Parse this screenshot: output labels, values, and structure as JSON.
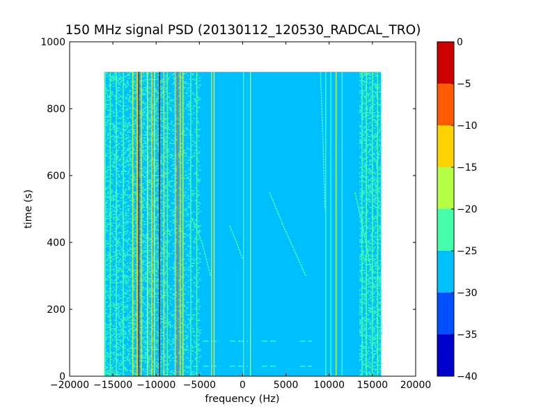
{
  "chart_data": {
    "type": "heatmap",
    "title": "150 MHz signal PSD (20130112_120530_RADCAL_TRO)",
    "xlabel": "frequency (Hz)",
    "ylabel": "time (s)",
    "xlim": [
      -20000,
      20000
    ],
    "ylim": [
      0,
      1000
    ],
    "xticks": [
      -20000,
      -15000,
      -10000,
      -5000,
      0,
      5000,
      10000,
      15000,
      20000
    ],
    "xtick_labels": [
      "−20000",
      "−15000",
      "−10000",
      "−5000",
      "0",
      "5000",
      "10000",
      "15000",
      "20000"
    ],
    "yticks": [
      0,
      200,
      400,
      600,
      800,
      1000
    ],
    "ytick_labels": [
      "0",
      "200",
      "400",
      "600",
      "800",
      "1000"
    ],
    "data_extent": {
      "freq": [
        -16000,
        16000
      ],
      "time": [
        0,
        910
      ]
    },
    "background_level": -27.5,
    "colorbar": {
      "levels": [
        -40,
        -35,
        -30,
        -25,
        -20,
        -15,
        -10,
        -5,
        0
      ],
      "tick_labels": [
        "−40",
        "−35",
        "−30",
        "−25",
        "−20",
        "−15",
        "−10",
        "−5",
        "0"
      ],
      "colors": [
        "#0000cd",
        "#0050ff",
        "#00bfff",
        "#45ffaa",
        "#b4ff46",
        "#ffd300",
        "#ff5a00",
        "#cd0000"
      ]
    },
    "steady_carriers": [
      {
        "freq": -15900,
        "level": -22.5,
        "t": [
          0,
          910
        ]
      },
      {
        "freq": -15300,
        "level": -22.5,
        "t": [
          0,
          910
        ]
      },
      {
        "freq": -14600,
        "level": -22.5,
        "t": [
          0,
          910
        ]
      },
      {
        "freq": -13800,
        "level": -22.5,
        "t": [
          0,
          910
        ]
      },
      {
        "freq": -12700,
        "level": -17.5,
        "t": [
          0,
          910
        ]
      },
      {
        "freq": -12200,
        "level": -12.5,
        "t": [
          0,
          910
        ]
      },
      {
        "freq": -12000,
        "level": -2.5,
        "t": [
          0,
          910
        ]
      },
      {
        "freq": -11700,
        "level": -12.5,
        "t": [
          0,
          910
        ]
      },
      {
        "freq": -11000,
        "level": -17.5,
        "t": [
          0,
          910
        ]
      },
      {
        "freq": -10500,
        "level": -12.5,
        "t": [
          0,
          910
        ]
      },
      {
        "freq": -10200,
        "level": -17.5,
        "t": [
          0,
          910
        ]
      },
      {
        "freq": -9600,
        "level": -2.5,
        "t": [
          0,
          910
        ]
      },
      {
        "freq": -9100,
        "level": -12.5,
        "t": [
          0,
          910
        ]
      },
      {
        "freq": -8700,
        "level": -22.5,
        "t": [
          0,
          910
        ]
      },
      {
        "freq": -7800,
        "level": -12.5,
        "t": [
          0,
          910
        ]
      },
      {
        "freq": -7500,
        "level": -7.5,
        "t": [
          0,
          910
        ]
      },
      {
        "freq": -7200,
        "level": -12.5,
        "t": [
          0,
          910
        ]
      },
      {
        "freq": -6900,
        "level": -17.5,
        "t": [
          0,
          910
        ]
      },
      {
        "freq": -6000,
        "level": -22.5,
        "t": [
          0,
          910
        ]
      },
      {
        "freq": -5300,
        "level": -22.5,
        "t": [
          0,
          910
        ]
      },
      {
        "freq": -3600,
        "level": -12.5,
        "t": [
          0,
          910
        ]
      },
      {
        "freq": -3300,
        "level": -17.5,
        "t": [
          0,
          910
        ]
      },
      {
        "freq": 100,
        "level": -22.5,
        "t": [
          0,
          910
        ]
      },
      {
        "freq": 900,
        "level": -17.5,
        "t": [
          0,
          910
        ]
      },
      {
        "freq": 9600,
        "level": -22.5,
        "t": [
          0,
          910
        ]
      },
      {
        "freq": 10200,
        "level": -22.5,
        "t": [
          0,
          910
        ]
      },
      {
        "freq": 10800,
        "level": -17.5,
        "t": [
          0,
          910
        ]
      },
      {
        "freq": 11500,
        "level": -22.5,
        "t": [
          0,
          910
        ]
      },
      {
        "freq": 13800,
        "level": -22.5,
        "t": [
          0,
          910
        ]
      },
      {
        "freq": 14300,
        "level": -22.5,
        "t": [
          0,
          910
        ]
      },
      {
        "freq": 15000,
        "level": -22.5,
        "t": [
          0,
          910
        ]
      },
      {
        "freq": 15600,
        "level": -22.5,
        "t": [
          0,
          910
        ]
      }
    ],
    "drifting_tracks": [
      {
        "level": -22.5,
        "points": [
          [
            3100,
            550
          ],
          [
            4700,
            450
          ],
          [
            7300,
            300
          ]
        ]
      },
      {
        "level": -22.5,
        "points": [
          [
            -5800,
            470
          ],
          [
            -4700,
            400
          ],
          [
            -3700,
            300
          ]
        ]
      },
      {
        "level": -22.5,
        "points": [
          [
            -1500,
            450
          ],
          [
            -700,
            400
          ],
          [
            0,
            350
          ]
        ]
      },
      {
        "level": -22.5,
        "points": [
          [
            9000,
            910
          ],
          [
            9300,
            700
          ],
          [
            9500,
            500
          ]
        ]
      },
      {
        "level": -22.5,
        "points": [
          [
            13000,
            550
          ],
          [
            14000,
            430
          ],
          [
            15000,
            300
          ]
        ]
      }
    ],
    "bursts": [
      {
        "time": 105,
        "level": -22.5,
        "segments": [
          [
            -4600,
            -2600
          ],
          [
            -1500,
            600
          ],
          [
            2200,
            4000
          ],
          [
            6600,
            8000
          ]
        ]
      },
      {
        "time": 30,
        "level": -22.5,
        "segments": [
          [
            -4600,
            -2600
          ],
          [
            -1500,
            600
          ],
          [
            2200,
            4000
          ],
          [
            6600,
            8000
          ]
        ]
      }
    ],
    "noisy_bands": [
      {
        "freq": [
          -16000,
          -8600
        ],
        "level": -22.5,
        "density": 0.38
      },
      {
        "freq": [
          -8600,
          -5000
        ],
        "level": -22.5,
        "density": 0.2
      },
      {
        "freq": [
          13500,
          16000
        ],
        "level": -22.5,
        "density": 0.42
      }
    ]
  }
}
